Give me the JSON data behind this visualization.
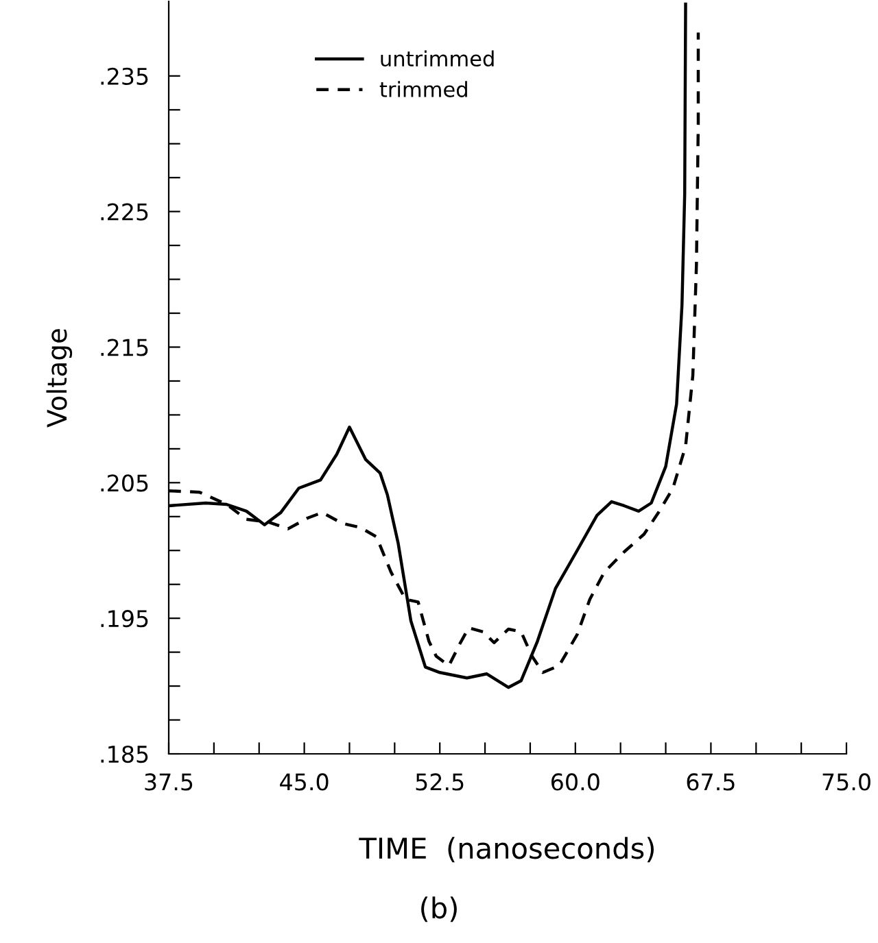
{
  "chart_data": {
    "type": "line",
    "xlabel": "TIME  (nanoseconds)",
    "ylabel": "Voltage",
    "annotations": [
      "(b)"
    ],
    "xlim": [
      37.5,
      75.0
    ],
    "ylim": [
      0.185,
      0.2405
    ],
    "xticks": [
      37.5,
      {
        "value": 40.0,
        "label": null
      },
      {
        "value": 42.5,
        "label": null
      },
      {
        "value": 45.0,
        "label": "45.0"
      },
      {
        "value": 47.5,
        "label": null
      },
      {
        "value": 50.0,
        "label": null
      },
      52.5,
      {
        "value": 55.0,
        "label": null
      },
      {
        "value": 57.5,
        "label": null
      },
      {
        "value": 60.0,
        "label": "60.0"
      },
      {
        "value": 62.5,
        "label": null
      },
      {
        "value": 65.0,
        "label": null
      },
      67.5,
      {
        "value": 70.0,
        "label": null
      },
      {
        "value": 72.5,
        "label": null
      },
      {
        "value": 75.0,
        "label": "75.0"
      }
    ],
    "yticks": [
      {
        "value": 0.185,
        "label": ".185"
      },
      {
        "value": 0.1875,
        "label": null
      },
      {
        "value": 0.19,
        "label": null
      },
      {
        "value": 0.1925,
        "label": null
      },
      {
        "value": 0.195,
        "label": ".195"
      },
      {
        "value": 0.1975,
        "label": null
      },
      {
        "value": 0.2,
        "label": null
      },
      {
        "value": 0.2025,
        "label": null
      },
      {
        "value": 0.205,
        "label": ".205"
      },
      {
        "value": 0.2075,
        "label": null
      },
      {
        "value": 0.21,
        "label": null
      },
      {
        "value": 0.2125,
        "label": null
      },
      {
        "value": 0.215,
        "label": ".215"
      },
      {
        "value": 0.2175,
        "label": null
      },
      {
        "value": 0.22,
        "label": null
      },
      {
        "value": 0.2225,
        "label": null
      },
      {
        "value": 0.225,
        "label": ".225"
      },
      {
        "value": 0.2275,
        "label": null
      },
      {
        "value": 0.23,
        "label": null
      },
      {
        "value": 0.2325,
        "label": null
      },
      {
        "value": 0.235,
        "label": ".235"
      }
    ],
    "grid": false,
    "legend": "top",
    "marker": "none",
    "series": [
      {
        "name": "untrimmed",
        "color": "#000000",
        "line_style": "solid",
        "x": [
          37.5,
          39.55,
          40.7,
          41.8,
          42.8,
          43.7,
          44.7,
          45.9,
          46.8,
          47.5,
          48.4,
          49.2,
          49.6,
          50.2,
          50.9,
          51.7,
          52.5,
          54.0,
          55.1,
          56.3,
          57.0,
          57.9,
          58.9,
          60.1,
          61.2,
          62.0,
          62.7,
          63.5,
          64.2,
          65.0,
          65.6,
          65.9,
          66.05,
          66.1
        ],
        "values": [
          0.2033,
          0.2035,
          0.2034,
          0.2029,
          0.2019,
          0.2028,
          0.2046,
          0.2052,
          0.2071,
          0.2091,
          0.2067,
          0.2057,
          0.2041,
          0.2005,
          0.1948,
          0.1914,
          0.191,
          0.1906,
          0.1909,
          0.1899,
          0.1904,
          0.1933,
          0.1972,
          0.2,
          0.2026,
          0.2036,
          0.2033,
          0.2029,
          0.2035,
          0.2062,
          0.2108,
          0.2181,
          0.2263,
          0.2403
        ]
      },
      {
        "name": "trimmed",
        "color": "#000000",
        "line_style": "dashed",
        "x": [
          37.5,
          39.2,
          40.7,
          41.8,
          43.0,
          44.1,
          45.2,
          46.0,
          47.1,
          48.1,
          49.0,
          49.8,
          50.6,
          51.3,
          51.9,
          52.3,
          53.0,
          53.6,
          54.1,
          54.9,
          55.5,
          56.3,
          57.0,
          57.6,
          58.2,
          59.1,
          60.1,
          60.8,
          61.6,
          62.7,
          63.8,
          64.6,
          65.4,
          66.1,
          66.5,
          66.7,
          66.8,
          66.8
        ],
        "values": [
          0.2044,
          0.2043,
          0.2034,
          0.2023,
          0.2021,
          0.2016,
          0.2024,
          0.2028,
          0.202,
          0.2017,
          0.201,
          0.1984,
          0.1964,
          0.1962,
          0.1933,
          0.1922,
          0.1915,
          0.1931,
          0.1943,
          0.194,
          0.1932,
          0.1942,
          0.194,
          0.1922,
          0.191,
          0.1915,
          0.1938,
          0.1964,
          0.1984,
          0.1999,
          0.2012,
          0.2028,
          0.2046,
          0.2077,
          0.2129,
          0.2211,
          0.2315,
          0.2382
        ]
      }
    ]
  }
}
